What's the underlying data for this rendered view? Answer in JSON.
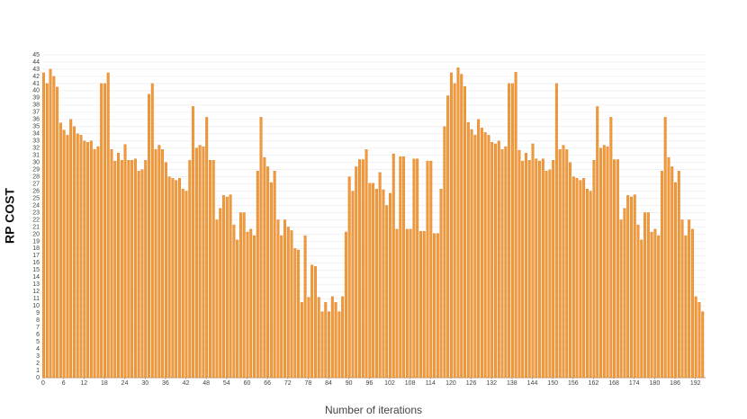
{
  "chart_data": {
    "type": "bar",
    "xlabel": "Number of iterations",
    "ylabel": "RP COST",
    "color": "#f29a3a",
    "grid": true,
    "xlim": [
      0,
      195
    ],
    "xticks": [
      0,
      6,
      12,
      18,
      24,
      30,
      36,
      42,
      48,
      54,
      60,
      66,
      72,
      78,
      84,
      90,
      96,
      102,
      108,
      114,
      120,
      126,
      132,
      138,
      144,
      150,
      156,
      162,
      168,
      174,
      180,
      186,
      192
    ],
    "ylim": [
      0,
      45
    ],
    "yticks": [
      0,
      1,
      2,
      3,
      4,
      5,
      6,
      7,
      8,
      9,
      10,
      11,
      12,
      13,
      14,
      15,
      16,
      17,
      18,
      19,
      20,
      21,
      22,
      23,
      24,
      25,
      26,
      27,
      28,
      29,
      30,
      31,
      32,
      33,
      34,
      35,
      36,
      37,
      38,
      39,
      40,
      41,
      42,
      43,
      44,
      45
    ],
    "values": [
      42.5,
      41,
      43,
      42,
      40.5,
      35.5,
      34.5,
      33.8,
      36,
      35,
      34,
      33.8,
      33,
      32.8,
      33,
      31.8,
      32.2,
      41,
      41,
      42.5,
      31.8,
      30.2,
      31.3,
      30.3,
      32.5,
      30.3,
      30.3,
      30.5,
      28.8,
      29,
      30.3,
      39.5,
      41,
      31.8,
      32.4,
      31.8,
      30,
      28,
      27.8,
      27.5,
      27.8,
      26.3,
      26,
      30.3,
      37.8,
      32,
      32.4,
      32.2,
      36.3,
      30.3,
      30.3,
      22,
      23.6,
      25.4,
      25.2,
      25.5,
      21.3,
      19.2,
      23,
      23,
      20.3,
      20.7,
      19.8,
      28.8,
      36.3,
      30.7,
      29.4,
      27.2,
      28.8,
      22,
      19.8,
      22,
      21,
      20.5,
      18,
      17.8,
      10.5,
      19.8,
      11.2,
      15.7,
      15.5,
      11.2,
      9.2,
      10.5,
      9.2,
      11.3,
      10.5,
      9.2,
      11.3,
      20.3,
      28,
      26,
      29.4,
      30.4,
      30.4,
      31.8,
      27.1,
      27.1,
      26.3,
      28.6,
      26.2,
      24,
      25.7,
      31.2,
      20.7,
      30.8,
      30.8,
      20.7,
      20.7,
      30.5,
      30.5,
      20.4,
      20.4,
      30.2,
      30.2,
      20.1,
      20.1,
      26.3,
      35,
      39.3,
      42.5,
      41,
      43.2,
      42.3,
      40.6,
      35.6,
      34.6,
      33.8,
      36,
      34.8,
      34.2,
      33.8,
      32.8,
      32.6,
      33,
      31.8,
      32.2,
      41,
      41,
      42.6,
      31.7,
      30.2,
      31.3,
      30.3,
      32.6,
      30.5,
      30.2,
      30.5,
      28.8,
      29,
      30.3,
      41,
      31.8,
      32.4,
      31.8,
      30,
      28,
      27.8,
      27.5,
      27.8,
      26.3,
      26,
      30.3,
      37.8,
      32,
      32.4,
      32.2,
      36.3,
      30.4,
      30.4,
      22,
      23.6,
      25.4,
      25.2,
      25.5,
      21.3,
      19.2,
      23,
      23,
      20.3,
      20.7,
      19.8,
      28.8,
      36.3,
      30.7,
      29.4,
      27.2,
      28.8,
      22,
      19.8,
      22,
      20.7,
      11.3,
      10.5,
      9.2
    ]
  }
}
